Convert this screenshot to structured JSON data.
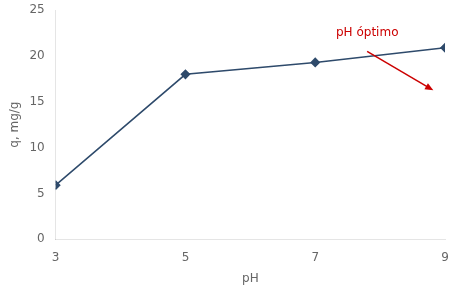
{
  "chart_data": {
    "type": "line",
    "x": [
      3,
      5,
      7,
      9
    ],
    "values": [
      5.9,
      18.0,
      19.3,
      20.9
    ],
    "xlabel": "pH",
    "ylabel": "q, mg/g",
    "xlim": [
      3,
      9
    ],
    "ylim": [
      0,
      25
    ],
    "xticks": [
      3,
      5,
      7,
      9
    ],
    "yticks": [
      0,
      5,
      10,
      15,
      20,
      25
    ],
    "color": "#2E4A6B",
    "marker": "diamond",
    "grid": false,
    "annotations": [
      {
        "text": "pH óptimo",
        "color": "#cc0000"
      }
    ]
  }
}
